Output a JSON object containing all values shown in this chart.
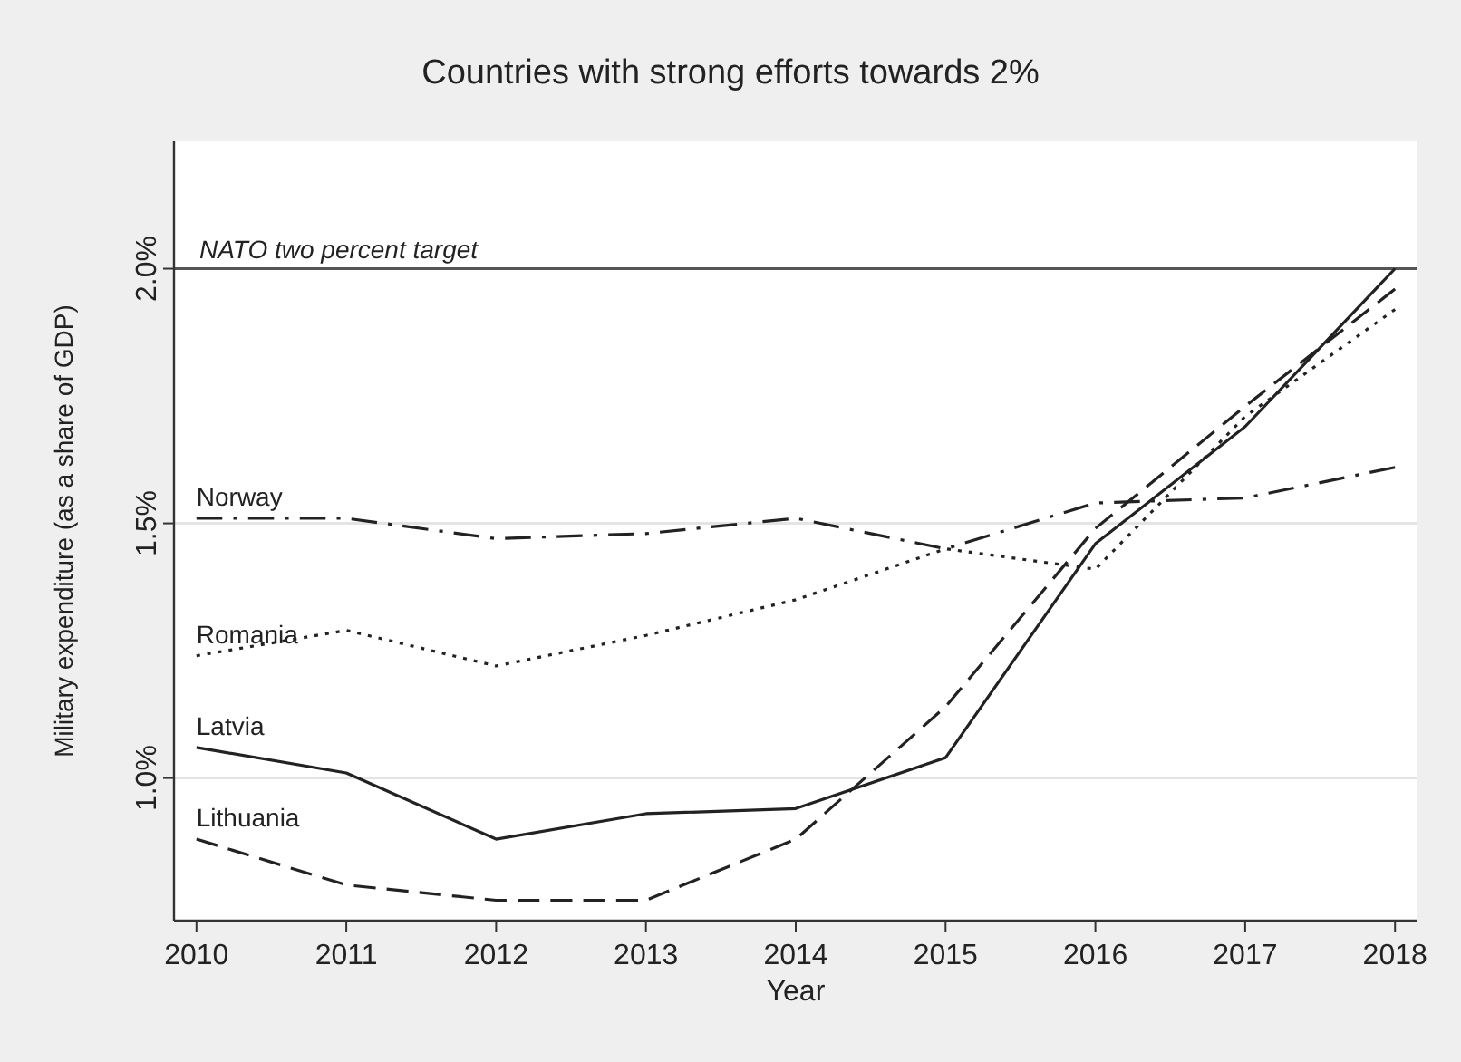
{
  "chart_data": {
    "type": "line",
    "title": "Countries with strong efforts towards 2%",
    "xlabel": "Year",
    "ylabel": "Military expenditure (as a share of GDP)",
    "x": [
      2010,
      2011,
      2012,
      2013,
      2014,
      2015,
      2016,
      2017,
      2018
    ],
    "xlim": [
      2009.85,
      2018.15
    ],
    "xticks": [
      2010,
      2011,
      2012,
      2013,
      2014,
      2015,
      2016,
      2017,
      2018
    ],
    "ylim": [
      0.72,
      2.25
    ],
    "yticks": [
      {
        "value": 1.0,
        "label": "1.0%"
      },
      {
        "value": 1.5,
        "label": "1.5%"
      },
      {
        "value": 2.0,
        "label": "2.0%"
      }
    ],
    "grid": "y",
    "ref_lines": [
      {
        "axis": "y",
        "value": 2.0,
        "label": "NATO two percent target",
        "color": "#555555",
        "line_style": "solid"
      }
    ],
    "series": [
      {
        "name": "Norway",
        "color": "#222222",
        "line_style": "dashdot",
        "values": [
          1.51,
          1.51,
          1.47,
          1.48,
          1.51,
          1.45,
          1.54,
          1.55,
          1.61
        ]
      },
      {
        "name": "Romania",
        "color": "#222222",
        "line_style": "dotted",
        "values": [
          1.24,
          1.29,
          1.22,
          1.28,
          1.35,
          1.45,
          1.41,
          1.71,
          1.92
        ]
      },
      {
        "name": "Latvia",
        "color": "#222222",
        "line_style": "solid",
        "values": [
          1.06,
          1.01,
          0.88,
          0.93,
          0.94,
          1.04,
          1.46,
          1.69,
          2.0
        ]
      },
      {
        "name": "Lithuania",
        "color": "#222222",
        "line_style": "dashed",
        "values": [
          0.88,
          0.79,
          0.76,
          0.76,
          0.88,
          1.14,
          1.49,
          1.73,
          1.96
        ]
      }
    ]
  }
}
